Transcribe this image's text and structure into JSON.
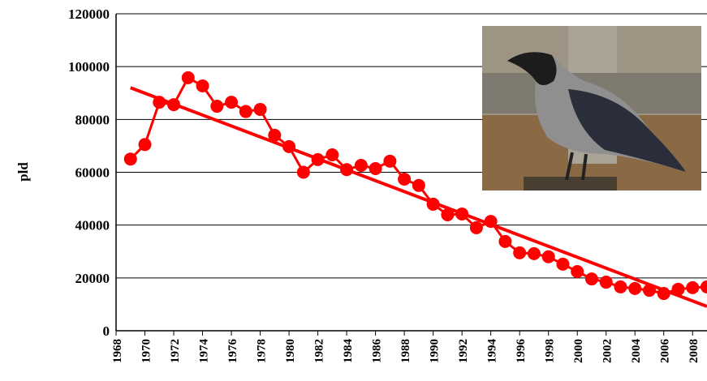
{
  "chart_data": {
    "type": "line",
    "y_label": "pld",
    "x": [
      1969,
      1970,
      1971,
      1972,
      1973,
      1974,
      1975,
      1976,
      1977,
      1978,
      1979,
      1980,
      1981,
      1982,
      1983,
      1984,
      1985,
      1986,
      1987,
      1988,
      1989,
      1990,
      1991,
      1992,
      1993,
      1994,
      1995,
      1996,
      1997,
      1998,
      1999,
      2000,
      2001,
      2002,
      2003,
      2004,
      2005,
      2006,
      2007,
      2008,
      2009
    ],
    "series": [
      {
        "color": "#ff0000",
        "values": [
          65000,
          70500,
          86500,
          85600,
          95800,
          92700,
          85000,
          86500,
          83000,
          83800,
          74000,
          69700,
          60000,
          64800,
          66600,
          61000,
          62600,
          61400,
          64200,
          57400,
          55000,
          47900,
          43900,
          44200,
          39000,
          41400,
          33800,
          29500,
          29200,
          28000,
          25200,
          22400,
          19600,
          18400,
          16600,
          16000,
          15300,
          14100,
          15700,
          16300,
          16600
        ]
      }
    ],
    "trend": {
      "color": "#ff0000",
      "x": [
        1969,
        2009
      ],
      "values": [
        92000,
        9200
      ]
    },
    "xlim": [
      1968,
      2009
    ],
    "xticks": [
      1968,
      1970,
      1972,
      1974,
      1976,
      1978,
      1980,
      1982,
      1984,
      1986,
      1988,
      1990,
      1992,
      1994,
      1996,
      1998,
      2000,
      2002,
      2004,
      2006,
      2008
    ],
    "ylim": [
      0,
      120000
    ],
    "yticks": [
      0,
      20000,
      40000,
      60000,
      80000,
      100000,
      120000
    ],
    "grid": true
  }
}
